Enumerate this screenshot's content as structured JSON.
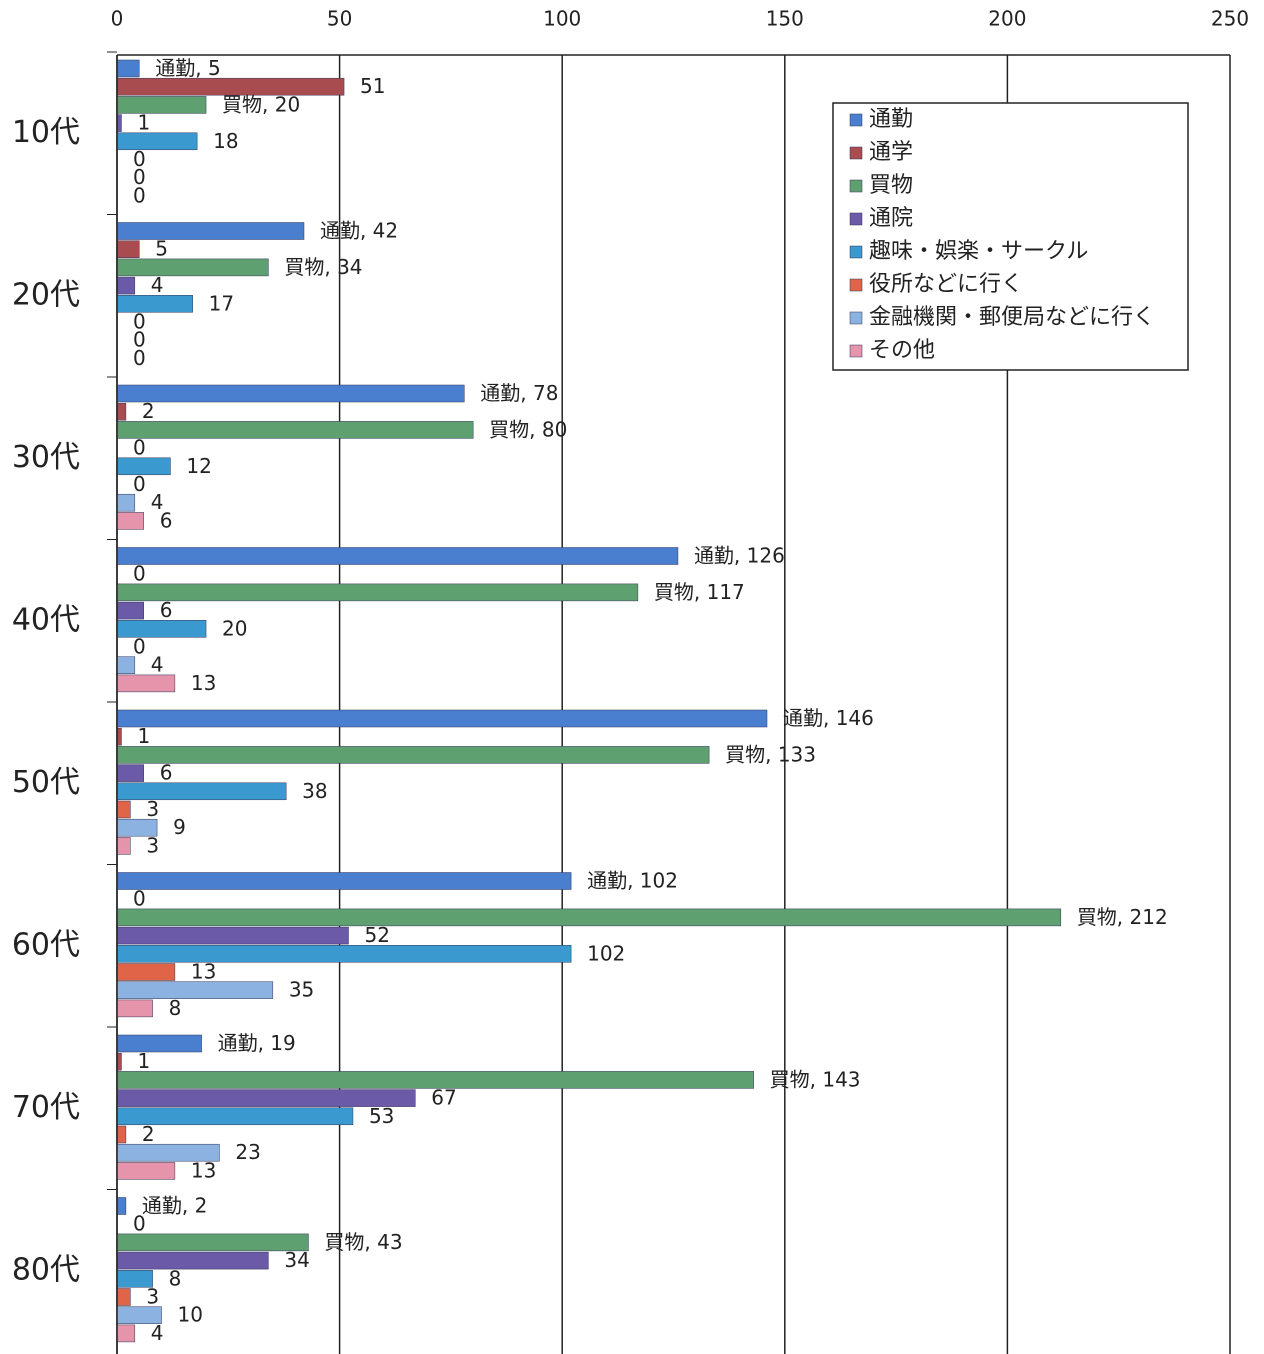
{
  "chart_data": {
    "type": "bar",
    "orientation": "horizontal",
    "categories": [
      "10代",
      "20代",
      "30代",
      "40代",
      "50代",
      "60代",
      "70代",
      "80代"
    ],
    "series": [
      {
        "name": "通勤",
        "color": "#4a7fd0",
        "values": [
          5,
          42,
          78,
          126,
          146,
          102,
          19,
          2
        ],
        "value_labels": [
          "通勤, 5",
          "通勤, 42",
          "通勤, 78",
          "通勤, 126",
          "通勤, 146",
          "通勤, 102",
          "通勤, 19",
          "通勤, 2"
        ]
      },
      {
        "name": "通学",
        "color": "#a84c50",
        "values": [
          51,
          5,
          2,
          0,
          1,
          0,
          1,
          0
        ]
      },
      {
        "name": "買物",
        "color": "#5fa070",
        "values": [
          20,
          34,
          80,
          117,
          133,
          212,
          143,
          43
        ],
        "value_labels": [
          "買物, 20",
          "買物, 34",
          "買物, 80",
          "買物, 117",
          "買物, 133",
          "買物, 212",
          "買物, 143",
          "買物, 43"
        ]
      },
      {
        "name": "通院",
        "color": "#6a5aa8",
        "values": [
          1,
          4,
          0,
          6,
          6,
          52,
          67,
          34
        ]
      },
      {
        "name": "趣味・娯楽・サークル",
        "color": "#3a9ad0",
        "values": [
          18,
          17,
          12,
          20,
          38,
          102,
          53,
          8
        ]
      },
      {
        "name": "役所などに行く",
        "color": "#e06448",
        "values": [
          0,
          0,
          0,
          0,
          3,
          13,
          2,
          3
        ]
      },
      {
        "name": "金融機関・郵便局などに行く",
        "color": "#8cb2e2",
        "values": [
          0,
          0,
          4,
          4,
          9,
          35,
          23,
          10
        ]
      },
      {
        "name": "その他",
        "color": "#e594ac",
        "values": [
          0,
          0,
          6,
          13,
          3,
          8,
          13,
          4
        ]
      }
    ],
    "xlim": [
      0,
      250
    ],
    "xticks": [
      0,
      50,
      100,
      150,
      200,
      250
    ],
    "grid": true,
    "legend": "upper right"
  }
}
